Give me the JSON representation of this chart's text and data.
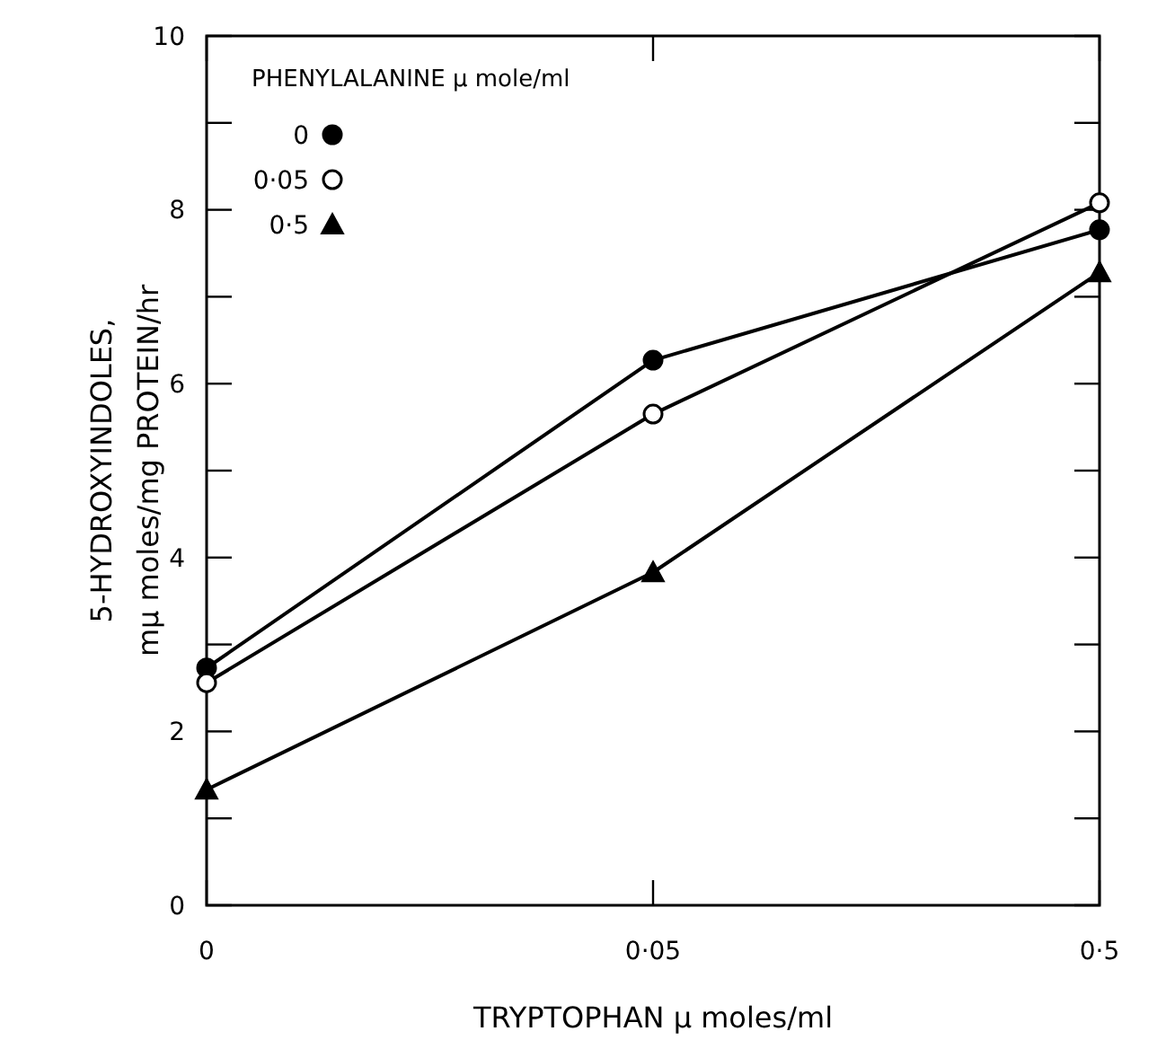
{
  "chart_data": {
    "type": "line",
    "xlabel": "TRYPTOPHAN μ moles/ml",
    "ylabel": "5-HYDROXYINDOLES,\nmμ  moles/mg PROTEIN/hr",
    "legend_title": "PHENYLALANINE μ mole/ml",
    "categories": [
      "0",
      "0·05",
      "0·5"
    ],
    "series": [
      {
        "name": "0",
        "color": "#000000",
        "marker": "circle",
        "values": [
          2.73,
          6.27,
          7.77
        ]
      },
      {
        "name": "0·05",
        "color": "#000000",
        "marker": "circle_open",
        "values": [
          2.56,
          5.65,
          8.08
        ]
      },
      {
        "name": "0·5",
        "color": "#000000",
        "marker": "triangle",
        "values": [
          1.33,
          3.83,
          7.28
        ]
      }
    ],
    "ylim": [
      0,
      10
    ],
    "yticks": [
      0,
      {
        "value": 1,
        "label": null
      },
      2,
      {
        "value": 3,
        "label": null
      },
      4,
      {
        "value": 5,
        "label": null
      },
      6,
      {
        "value": 7,
        "label": null
      },
      8,
      {
        "value": 9,
        "label": null
      },
      10
    ],
    "legend": "top left",
    "grid": false,
    "line_style": "solid"
  }
}
